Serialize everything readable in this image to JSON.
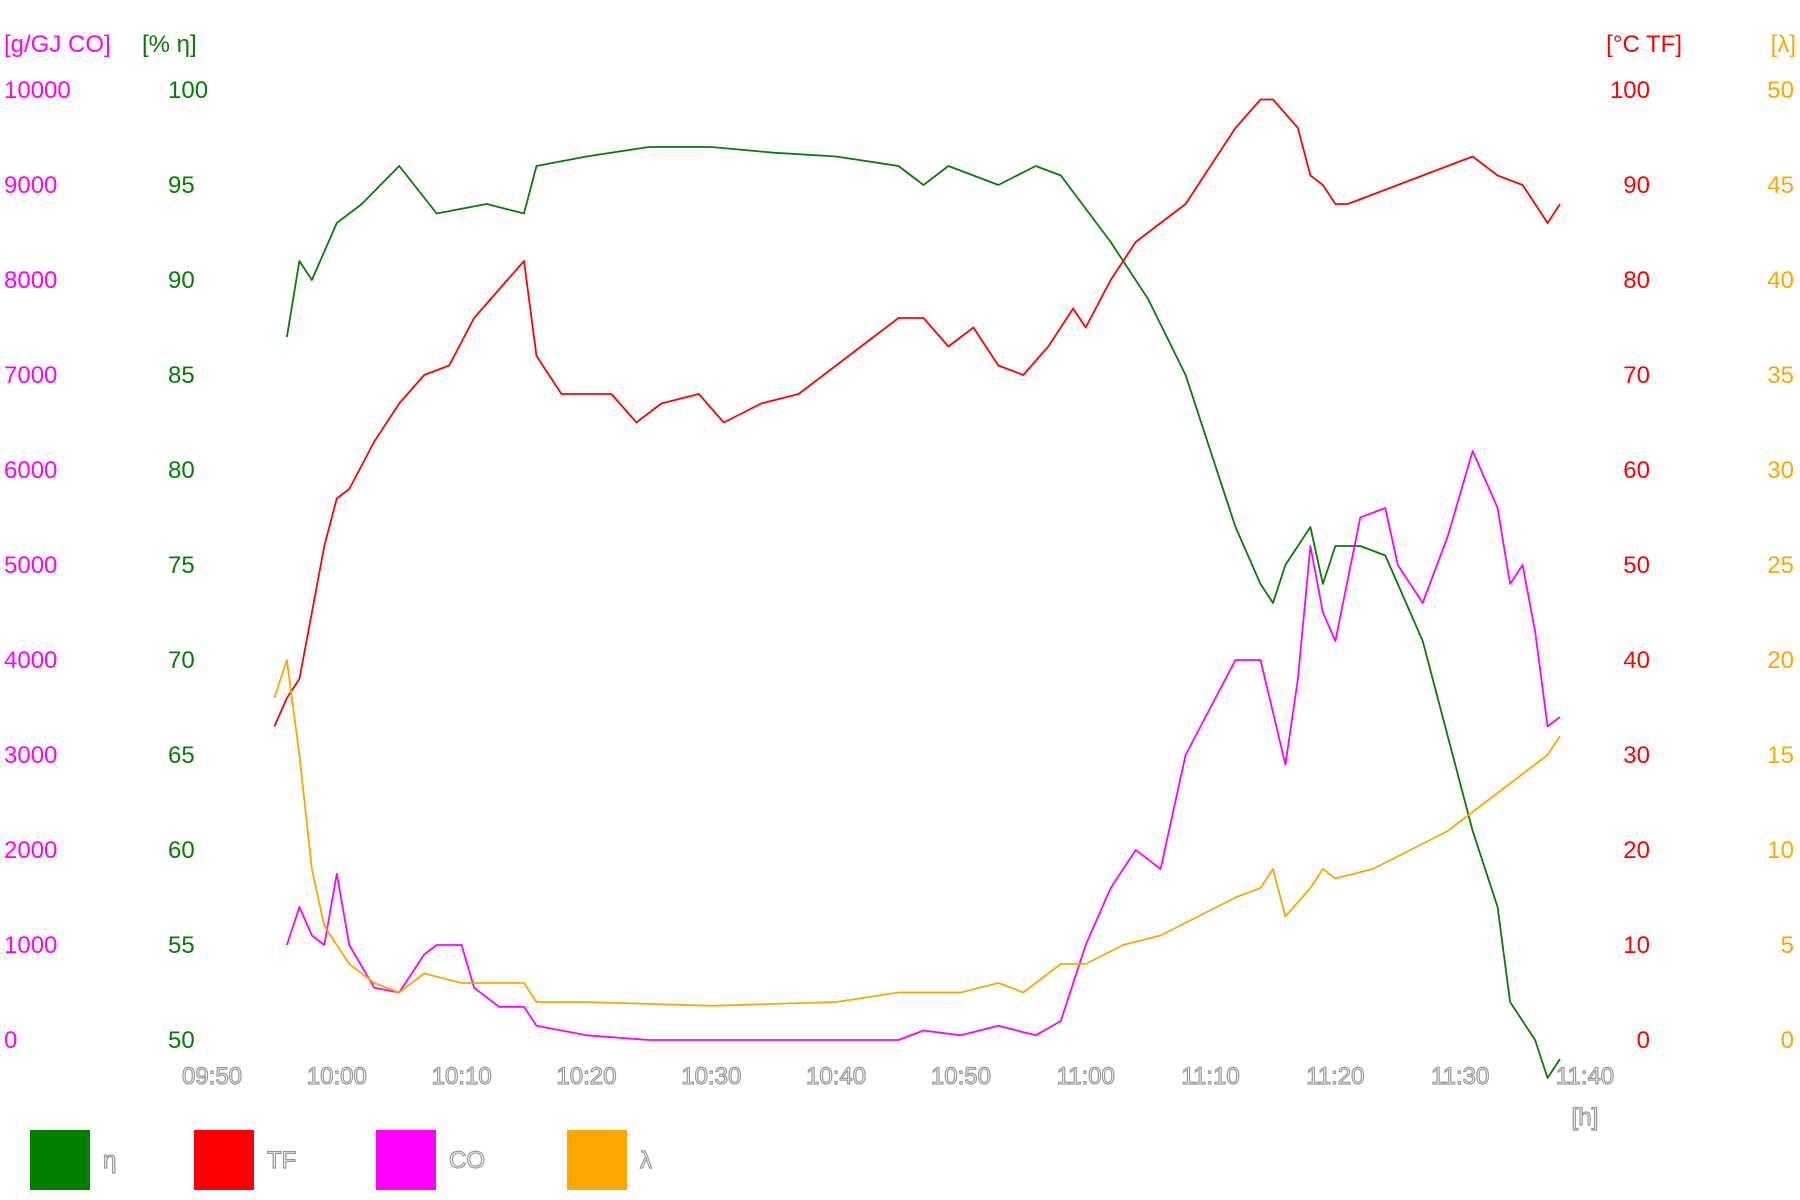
{
  "chart_data": {
    "type": "line",
    "x_ticks": [
      "09:50",
      "10:00",
      "10:10",
      "10:20",
      "10:30",
      "10:40",
      "10:50",
      "11:00",
      "11:10",
      "11:20",
      "11:30",
      "11:40"
    ],
    "x_unit": "[h]",
    "xlim": [
      "09:50",
      "11:40"
    ],
    "axes": {
      "co": {
        "unit": "[g/GJ CO]",
        "ticks": [
          "0",
          "1000",
          "2000",
          "3000",
          "4000",
          "5000",
          "6000",
          "7000",
          "8000",
          "9000",
          "10000"
        ],
        "ylim": [
          0,
          10000
        ],
        "side": "left",
        "color": "#ff00ff"
      },
      "eta": {
        "unit": "[% η]",
        "ticks": [
          "50",
          "55",
          "60",
          "65",
          "70",
          "75",
          "80",
          "85",
          "90",
          "95",
          "100"
        ],
        "ylim": [
          50,
          100
        ],
        "side": "left",
        "color": "#007f00"
      },
      "tf": {
        "unit": "[°C TF]",
        "ticks": [
          "0",
          "10",
          "20",
          "30",
          "40",
          "50",
          "60",
          "70",
          "80",
          "90",
          "100"
        ],
        "ylim": [
          0,
          100
        ],
        "side": "right",
        "color": "#ff0000"
      },
      "lambda": {
        "unit": "[λ]",
        "ticks": [
          "0",
          "5",
          "10",
          "15",
          "20",
          "25",
          "30",
          "35",
          "40",
          "45",
          "50"
        ],
        "ylim": [
          0,
          50
        ],
        "side": "right",
        "color": "#ffa500"
      }
    },
    "series": [
      {
        "name": "η",
        "axis": "eta",
        "color": "#007f00",
        "x": [
          "09:56",
          "09:57",
          "09:58",
          "10:00",
          "10:02",
          "10:05",
          "10:08",
          "10:12",
          "10:15",
          "10:16",
          "10:20",
          "10:25",
          "10:30",
          "10:35",
          "10:40",
          "10:45",
          "10:47",
          "10:49",
          "10:53",
          "10:56",
          "10:58",
          "11:02",
          "11:05",
          "11:08",
          "11:10",
          "11:12",
          "11:14",
          "11:15",
          "11:16",
          "11:18",
          "11:19",
          "11:20",
          "11:22",
          "11:24",
          "11:25",
          "11:27",
          "11:29",
          "11:31",
          "11:33",
          "11:34",
          "11:36",
          "11:37",
          "11:38"
        ],
        "y": [
          87,
          91,
          90,
          93,
          94,
          96,
          93.5,
          94,
          93.5,
          96,
          96.5,
          97,
          97,
          96.7,
          96.5,
          96,
          95,
          96,
          95,
          96,
          95.5,
          92,
          89,
          85,
          81,
          77,
          74,
          73,
          75,
          77,
          74,
          76,
          76,
          75.5,
          74,
          71,
          66,
          61,
          57,
          52,
          50,
          48,
          49
        ]
      },
      {
        "name": "TF",
        "axis": "tf",
        "color": "#ff0000",
        "x": [
          "09:55",
          "09:56",
          "09:57",
          "09:58",
          "09:59",
          "10:00",
          "10:01",
          "10:03",
          "10:05",
          "10:07",
          "10:09",
          "10:11",
          "10:13",
          "10:15",
          "10:16",
          "10:18",
          "10:22",
          "10:24",
          "10:26",
          "10:29",
          "10:31",
          "10:34",
          "10:37",
          "10:40",
          "10:43",
          "10:45",
          "10:47",
          "10:49",
          "10:51",
          "10:53",
          "10:55",
          "10:57",
          "10:59",
          "11:00",
          "11:02",
          "11:04",
          "11:06",
          "11:08",
          "11:10",
          "11:12",
          "11:14",
          "11:15",
          "11:17",
          "11:18",
          "11:19",
          "11:20",
          "11:21",
          "11:23",
          "11:25",
          "11:27",
          "11:29",
          "11:31",
          "11:33",
          "11:35",
          "11:36",
          "11:37",
          "11:38"
        ],
        "y": [
          33,
          36,
          38,
          45,
          52,
          57,
          58,
          63,
          67,
          70,
          71,
          76,
          79,
          82,
          72,
          68,
          68,
          65,
          67,
          68,
          65,
          67,
          68,
          71,
          74,
          76,
          76,
          73,
          75,
          71,
          70,
          73,
          77,
          75,
          80,
          84,
          86,
          88,
          92,
          96,
          99,
          99,
          96,
          91,
          90,
          88,
          88,
          89,
          90,
          91,
          92,
          93,
          91,
          90,
          88,
          86,
          88
        ]
      },
      {
        "name": "CO",
        "axis": "co",
        "color": "#ff00ff",
        "x": [
          "09:56",
          "09:57",
          "09:58",
          "09:59",
          "10:00",
          "10:01",
          "10:03",
          "10:05",
          "10:07",
          "10:08",
          "10:10",
          "10:11",
          "10:13",
          "10:15",
          "10:16",
          "10:20",
          "10:25",
          "10:30",
          "10:40",
          "10:45",
          "10:47",
          "10:50",
          "10:53",
          "10:56",
          "10:58",
          "11:00",
          "11:02",
          "11:04",
          "11:06",
          "11:08",
          "11:10",
          "11:12",
          "11:14",
          "11:16",
          "11:17",
          "11:18",
          "11:19",
          "11:20",
          "11:22",
          "11:24",
          "11:25",
          "11:27",
          "11:29",
          "11:31",
          "11:33",
          "11:34",
          "11:35",
          "11:36",
          "11:37",
          "11:38"
        ],
        "y": [
          1000,
          1400,
          1100,
          1000,
          1750,
          1000,
          550,
          500,
          900,
          1000,
          1000,
          550,
          350,
          350,
          150,
          50,
          0,
          0,
          0,
          0,
          100,
          50,
          150,
          50,
          200,
          1000,
          1600,
          2000,
          1800,
          3000,
          3500,
          4000,
          4000,
          2900,
          3800,
          5200,
          4500,
          4200,
          5500,
          5600,
          5000,
          4600,
          5300,
          6200,
          5600,
          4800,
          5000,
          4300,
          3300,
          3400
        ]
      },
      {
        "name": "λ",
        "axis": "lambda",
        "color": "#ffa500",
        "x": [
          "09:55",
          "09:56",
          "09:57",
          "09:58",
          "09:59",
          "10:00",
          "10:01",
          "10:03",
          "10:05",
          "10:07",
          "10:10",
          "10:15",
          "10:16",
          "10:20",
          "10:25",
          "10:30",
          "10:35",
          "10:40",
          "10:45",
          "10:50",
          "10:53",
          "10:55",
          "10:58",
          "11:00",
          "11:03",
          "11:06",
          "11:09",
          "11:12",
          "11:14",
          "11:15",
          "11:16",
          "11:18",
          "11:19",
          "11:20",
          "11:23",
          "11:26",
          "11:29",
          "11:31",
          "11:33",
          "11:35",
          "11:37",
          "11:38"
        ],
        "y": [
          18,
          20,
          15,
          9,
          6,
          5,
          4,
          3,
          2.5,
          3.5,
          3,
          3,
          2,
          2,
          1.9,
          1.8,
          1.9,
          2,
          2.5,
          2.5,
          3,
          2.5,
          4,
          4,
          5,
          5.5,
          6.5,
          7.5,
          8,
          9,
          6.5,
          8,
          9,
          8.5,
          9,
          10,
          11,
          12,
          13,
          14,
          15,
          16
        ]
      }
    ],
    "legend_position": "bottom-left",
    "grid": false
  }
}
